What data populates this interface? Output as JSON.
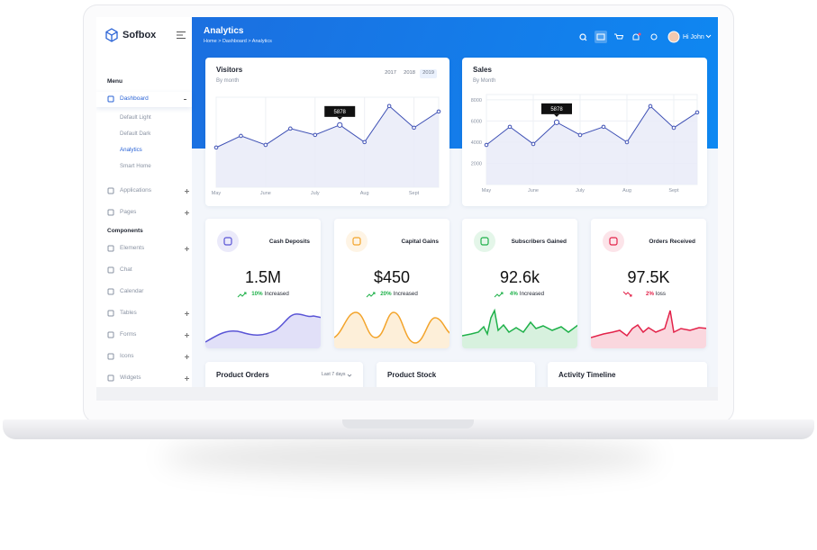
{
  "brand": "Sofbox",
  "sidebar": {
    "sections": [
      {
        "heading": "Menu",
        "items": [
          {
            "label": "Dashboard",
            "active": true,
            "expanded": true,
            "children": [
              {
                "label": "Default Light"
              },
              {
                "label": "Default Dark"
              },
              {
                "label": "Analytics",
                "active": true
              },
              {
                "label": "Smart Home"
              }
            ]
          },
          {
            "label": "Applications",
            "expandable": true
          },
          {
            "label": "Pages",
            "expandable": true
          }
        ]
      },
      {
        "heading": "Components",
        "items": [
          {
            "label": "Elements",
            "expandable": true
          },
          {
            "label": "Chat"
          },
          {
            "label": "Calendar"
          },
          {
            "label": "Tables",
            "expandable": true
          },
          {
            "label": "Forms",
            "expandable": true
          },
          {
            "label": "Icons",
            "expandable": true
          },
          {
            "label": "Widgets",
            "expandable": true
          }
        ]
      }
    ]
  },
  "header": {
    "title": "Analytics",
    "breadcrumb": "Home > Dashboard > Analytics",
    "user": "Hi John"
  },
  "chart_data": [
    {
      "type": "line",
      "title": "Visitors",
      "subtitle": "By month",
      "years": [
        "2017",
        "2018",
        "2019"
      ],
      "active_year": 2,
      "categories": [
        "May",
        null,
        "June",
        null,
        "July",
        null,
        "Aug",
        null,
        "Sept",
        null
      ],
      "values": [
        3750,
        4850,
        4000,
        5540,
        4940,
        5878,
        4260,
        7670,
        5620,
        7150
      ],
      "highlight": 5,
      "ylim": [
        0,
        8500
      ],
      "color": "#3f51b5",
      "grid": true
    },
    {
      "type": "line",
      "title": "Sales",
      "subtitle": "By Month",
      "categories": [
        "May",
        null,
        "June",
        null,
        "July",
        null,
        "Aug",
        null,
        "Sept",
        null
      ],
      "values": [
        3740,
        5450,
        3830,
        5878,
        4680,
        5450,
        4000,
        7400,
        5360,
        6810
      ],
      "highlight": 3,
      "ylim": [
        0,
        8500
      ],
      "yticks": [
        2000,
        4000,
        6000,
        8000
      ],
      "color": "#3f51b5",
      "grid": true
    }
  ],
  "stats": [
    {
      "title": "Cash Deposits",
      "value": "1.5M",
      "change": "10%",
      "trend": "Increased",
      "direction": "up",
      "color": "#5a55d6"
    },
    {
      "title": "Capital Gains",
      "value": "$450",
      "change": "20%",
      "trend": "Increased",
      "direction": "up",
      "color": "#f3a42b"
    },
    {
      "title": "Subscribers Gained",
      "value": "92.6k",
      "change": "4%",
      "trend": "Increased",
      "direction": "up",
      "color": "#1fb14a"
    },
    {
      "title": "Orders Received",
      "value": "97.5K",
      "change": "2%",
      "trend": "loss",
      "direction": "down",
      "color": "#e3234a"
    }
  ],
  "bottom_cards": [
    {
      "title": "Product Orders",
      "filter": "Last 7 days"
    },
    {
      "title": "Product Stock"
    },
    {
      "title": "Activity Timeline"
    }
  ]
}
